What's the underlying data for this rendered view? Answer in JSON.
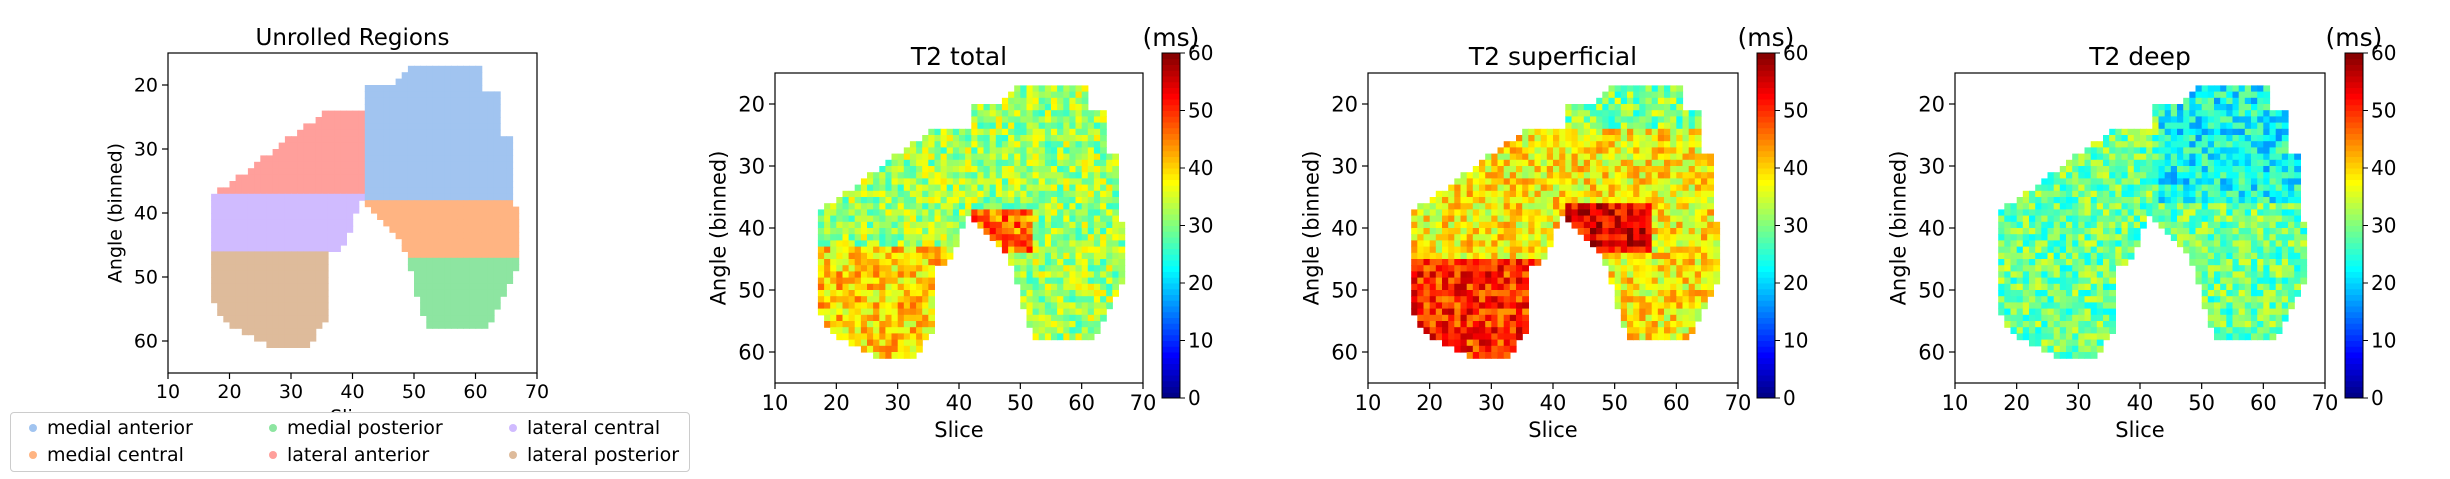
{
  "chart_data": [
    {
      "type": "heatmap",
      "title": "Unrolled Regions",
      "xlabel": "Slice",
      "ylabel": "Angle (binned)",
      "xlim": [
        10,
        70
      ],
      "ylim": [
        65,
        15
      ],
      "xticks": [
        10,
        20,
        30,
        40,
        50,
        60,
        70
      ],
      "yticks": [
        20,
        30,
        40,
        50,
        60
      ],
      "regions": [
        {
          "name": "medial anterior",
          "color": "#a1c4f0"
        },
        {
          "name": "medial central",
          "color": "#ffb482"
        },
        {
          "name": "medial posterior",
          "color": "#8de5a1"
        },
        {
          "name": "lateral anterior",
          "color": "#ff9f9b"
        },
        {
          "name": "lateral central",
          "color": "#d0bbff"
        },
        {
          "name": "lateral posterior",
          "color": "#debb9b"
        }
      ]
    },
    {
      "type": "heatmap",
      "title": "T2 total",
      "xlabel": "Slice",
      "ylabel": "Angle (binned)",
      "xlim": [
        10,
        70
      ],
      "ylim": [
        65,
        15
      ],
      "xticks": [
        10,
        20,
        30,
        40,
        50,
        60,
        70
      ],
      "yticks": [
        20,
        30,
        40,
        50,
        60
      ],
      "colorbar": {
        "label": "(ms)",
        "range": [
          0,
          60
        ],
        "ticks": [
          0,
          10,
          20,
          30,
          40,
          50,
          60
        ],
        "colormap": "jet"
      },
      "typical_value_ms": 32
    },
    {
      "type": "heatmap",
      "title": "T2 superficial",
      "xlabel": "Slice",
      "ylabel": "Angle (binned)",
      "xlim": [
        10,
        70
      ],
      "ylim": [
        65,
        15
      ],
      "xticks": [
        10,
        20,
        30,
        40,
        50,
        60,
        70
      ],
      "yticks": [
        20,
        30,
        40,
        50,
        60
      ],
      "colorbar": {
        "label": "(ms)",
        "range": [
          0,
          60
        ],
        "ticks": [
          0,
          10,
          20,
          30,
          40,
          50,
          60
        ],
        "colormap": "jet"
      },
      "typical_value_ms": 38
    },
    {
      "type": "heatmap",
      "title": "T2 deep",
      "xlabel": "Slice",
      "ylabel": "Angle (binned)",
      "xlim": [
        10,
        70
      ],
      "ylim": [
        65,
        15
      ],
      "xticks": [
        10,
        20,
        30,
        40,
        50,
        60,
        70
      ],
      "yticks": [
        20,
        30,
        40,
        50,
        60
      ],
      "colorbar": {
        "label": "(ms)",
        "range": [
          0,
          60
        ],
        "ticks": [
          0,
          10,
          20,
          30,
          40,
          50,
          60
        ],
        "colormap": "jet"
      },
      "typical_value_ms": 29
    }
  ]
}
